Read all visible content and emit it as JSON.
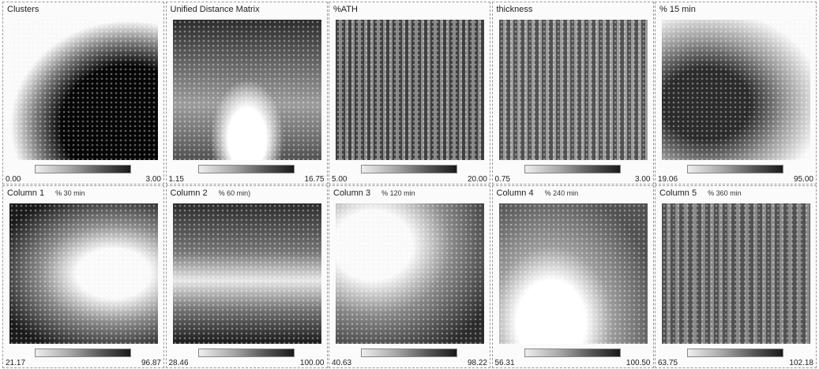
{
  "panels": [
    {
      "title": "Clusters",
      "min": "0.00",
      "max": "3.00"
    },
    {
      "title": "Unified Distance Matrix",
      "min": "1.15",
      "max": "16.75"
    },
    {
      "title": "%ATH",
      "min": "5.00",
      "max": "20.00"
    },
    {
      "title": "thickness",
      "min": "0.75",
      "max": "3.00"
    },
    {
      "title": "% 15 min",
      "min": "19.06",
      "max": "95.00"
    },
    {
      "title": "Column 1",
      "subtitle": "% 30 min",
      "min": "21.17",
      "max": "96.87"
    },
    {
      "title": "Column 2",
      "subtitle": "% 60 min)",
      "min": "28.46",
      "max": "100.00"
    },
    {
      "title": "Column 3",
      "subtitle": "% 120 min",
      "min": "40.63",
      "max": "98.22"
    },
    {
      "title": "Column 4",
      "subtitle": "% 240 min",
      "min": "56.31",
      "max": "100.50"
    },
    {
      "title": "Column 5",
      "subtitle": "% 360 min",
      "min": "63.75",
      "max": "102.18"
    }
  ]
}
